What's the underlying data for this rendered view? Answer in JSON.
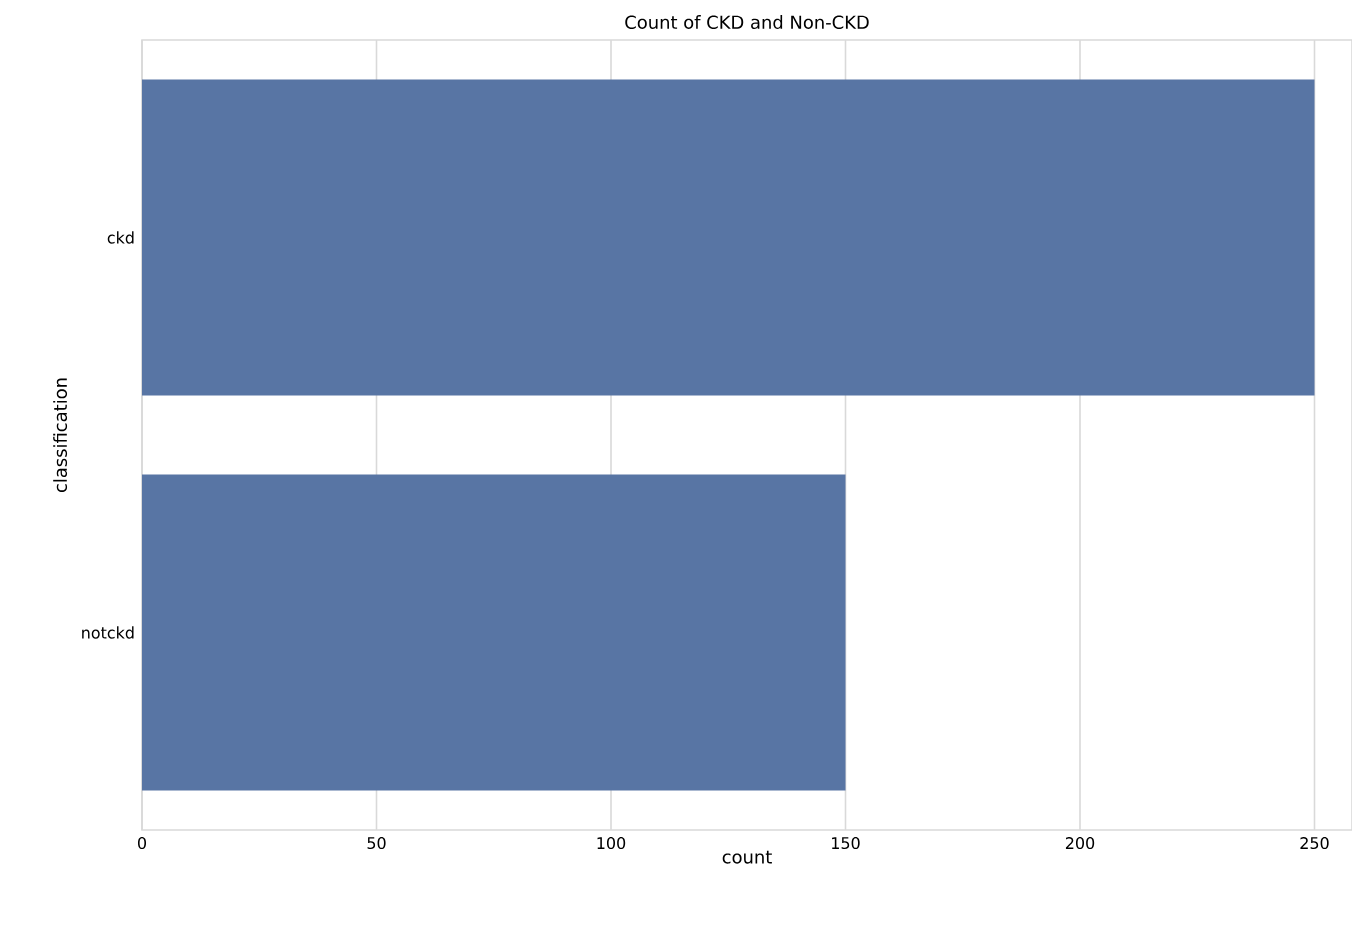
{
  "chart_data": {
    "type": "bar",
    "orientation": "horizontal",
    "title": "Count of CKD and Non-CKD",
    "xlabel": "count",
    "ylabel": "classification",
    "categories": [
      "ckd",
      "notckd"
    ],
    "values": [
      250,
      150
    ],
    "color": "#5875a4",
    "xlim": [
      0,
      258
    ],
    "xticks": [
      0,
      50,
      100,
      150,
      200,
      250
    ],
    "grid": "x"
  }
}
